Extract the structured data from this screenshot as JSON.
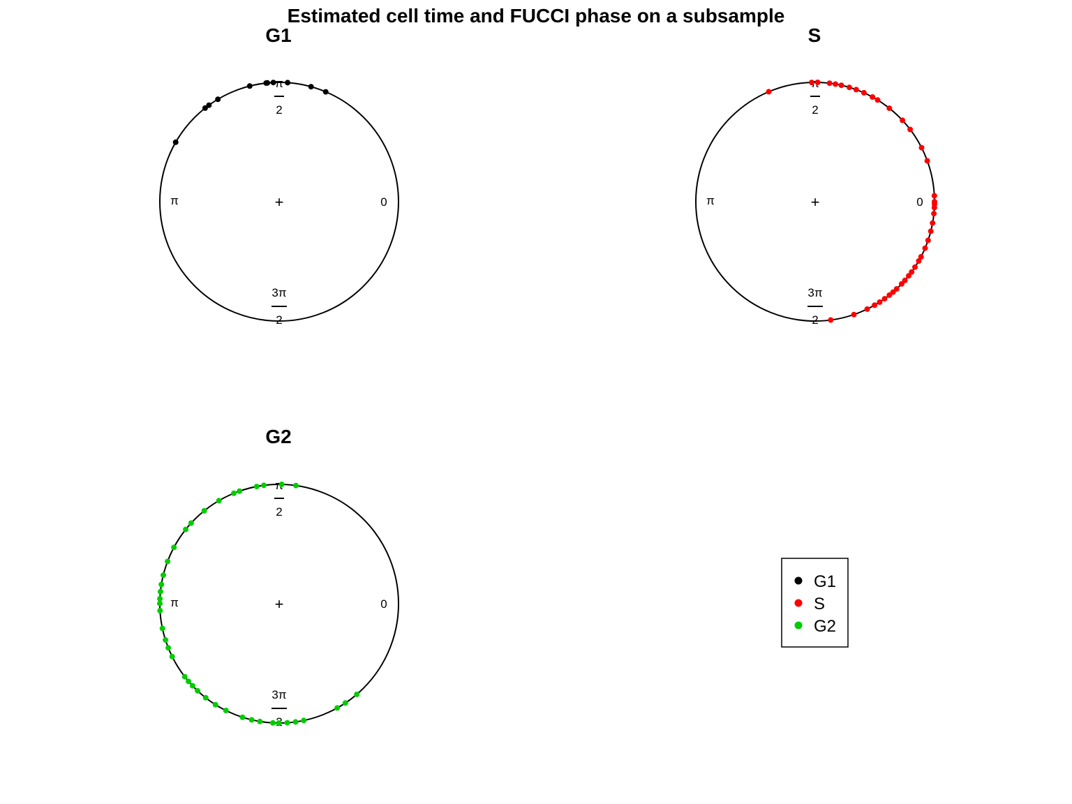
{
  "chart_data": {
    "type": "scatter",
    "title": "Estimated cell time and FUCCI phase on a subsample",
    "coordinate_system": "circular",
    "panels": [
      {
        "title": "G1",
        "series": "G1",
        "angles": [
          1.17,
          1.3,
          1.5,
          1.62,
          1.67,
          1.68,
          1.82,
          2.11,
          2.2,
          2.24,
          2.62
        ]
      },
      {
        "title": "S",
        "series": "S",
        "angles": [
          0.05,
          0.0,
          -0.02,
          -0.05,
          -0.1,
          -0.18,
          -0.25,
          -0.33,
          -0.4,
          -0.48,
          -0.52,
          -0.58,
          -0.63,
          -0.67,
          -0.72,
          -0.76,
          -0.82,
          -0.86,
          -0.9,
          -0.95,
          -1.0,
          -1.05,
          -1.12,
          -1.24,
          -1.44,
          0.35,
          0.47,
          0.65,
          0.75,
          0.9,
          1.02,
          1.07,
          1.15,
          1.22,
          1.28,
          1.35,
          1.4,
          1.45,
          1.55,
          1.6,
          1.97
        ]
      },
      {
        "title": "G2",
        "series": "G2",
        "angles": [
          1.43,
          1.55,
          1.7,
          1.76,
          1.91,
          1.96,
          2.1,
          2.25,
          2.4,
          2.47,
          2.65,
          2.78,
          2.9,
          2.98,
          3.04,
          3.1,
          3.14,
          3.2,
          3.35,
          3.45,
          3.52,
          3.6,
          3.8,
          3.85,
          3.9,
          3.96,
          4.05,
          4.15,
          4.25,
          4.4,
          4.48,
          4.55,
          4.66,
          4.71,
          4.78,
          4.85,
          4.92,
          5.22,
          5.3,
          5.42
        ]
      }
    ],
    "axis_labels": {
      "zero": "0",
      "half_pi_num": "π",
      "half_pi_den": "2",
      "pi": "π",
      "three_half_pi_num": "3π",
      "three_half_pi_den": "2",
      "center": "+"
    },
    "legend": {
      "position": "bottom-right",
      "entries": [
        {
          "label": "G1",
          "color": "#000000"
        },
        {
          "label": "S",
          "color": "#ff0000"
        },
        {
          "label": "G2",
          "color": "#00cd00"
        }
      ]
    }
  }
}
